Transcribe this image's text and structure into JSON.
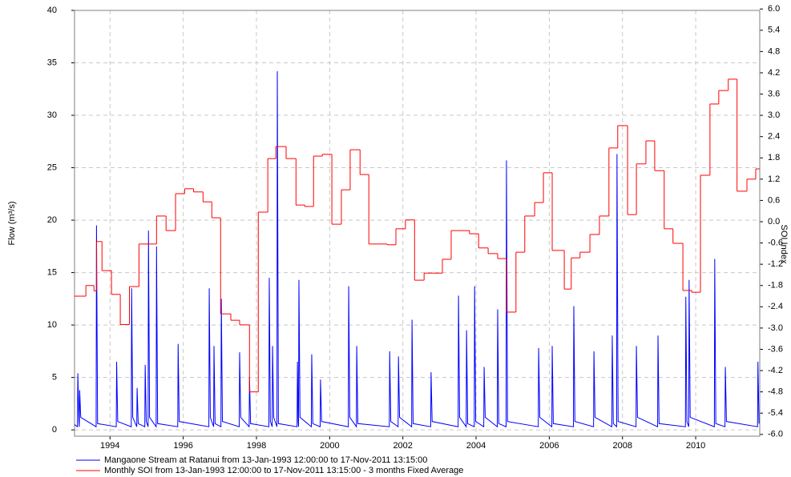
{
  "chart_data": {
    "type": "line",
    "y_label": "Flow (m³/s)",
    "y2_label": "SOI Index",
    "xlim": [
      1993.03,
      2011.75
    ],
    "xticks": [
      1994,
      1996,
      1998,
      2000,
      2002,
      2004,
      2006,
      2008,
      2010
    ],
    "ylim": [
      -0.6,
      40
    ],
    "yticks": [
      0,
      5,
      10,
      15,
      20,
      25,
      30,
      35,
      40
    ],
    "y2lim": [
      -6.05,
      5.96
    ],
    "y2ticks": [
      {
        "value": -6,
        "label": "-6.0"
      },
      {
        "value": -5.4,
        "label": "-5.4"
      },
      {
        "value": -4.8,
        "label": "-4.8"
      },
      {
        "value": -4.2,
        "label": "-4.2"
      },
      {
        "value": -3.6,
        "label": "-3.6"
      },
      {
        "value": -3,
        "label": "-3.0"
      },
      {
        "value": -2.4,
        "label": "-2.4"
      },
      {
        "value": -1.8,
        "label": "-1.8"
      },
      {
        "value": -1.2,
        "label": "-1.2"
      },
      {
        "value": -0.6,
        "label": "-0.6"
      },
      {
        "value": 0,
        "label": "0.0"
      },
      {
        "value": 0.6,
        "label": "0.6"
      },
      {
        "value": 1.2,
        "label": "1.2"
      },
      {
        "value": 1.8,
        "label": "1.8"
      },
      {
        "value": 2.4,
        "label": "2.4"
      },
      {
        "value": 3,
        "label": "3.0"
      },
      {
        "value": 3.6,
        "label": "3.6"
      },
      {
        "value": 4.2,
        "label": "4.2"
      },
      {
        "value": 4.8,
        "label": "4.8"
      },
      {
        "value": 5.4,
        "label": "5.4"
      },
      {
        "value": 6,
        "label": "6.0"
      }
    ],
    "grid": true,
    "legend": "bottom",
    "series": [
      {
        "name": "Mangaone Stream at Ratanui from 13-Jan-1993 12:00:00 to 17-Nov-2011 13:15:00",
        "color": "#0000ff",
        "axis": "y",
        "x": [
          1993.03,
          1993.11,
          1993.12,
          1993.15,
          1993.16,
          1993.17,
          1993.2,
          1993.62,
          1993.63,
          1993.66,
          1994.17,
          1994.18,
          1994.21,
          1994.58,
          1994.59,
          1994.62,
          1994.73,
          1994.74,
          1994.77,
          1994.95,
          1994.96,
          1994.99,
          1995.04,
          1995.05,
          1995.08,
          1995.26,
          1995.27,
          1995.3,
          1995.85,
          1995.86,
          1995.89,
          1996.7,
          1996.71,
          1996.74,
          1996.83,
          1996.84,
          1996.87,
          1997.03,
          1997.04,
          1997.07,
          1997.53,
          1997.54,
          1997.57,
          1997.8,
          1997.81,
          1997.84,
          1998.34,
          1998.35,
          1998.38,
          1998.43,
          1998.44,
          1998.47,
          1998.56,
          1998.57,
          1998.6,
          1999.11,
          1999.12,
          1999.14,
          1999.15,
          1999.16,
          1999.19,
          1999.5,
          1999.51,
          1999.54,
          1999.74,
          1999.75,
          1999.78,
          2000.51,
          2000.52,
          2000.55,
          2000.73,
          2000.74,
          2000.77,
          2001.63,
          2001.64,
          2001.67,
          2001.87,
          2001.88,
          2001.91,
          2002.24,
          2002.25,
          2002.28,
          2002.76,
          2002.77,
          2002.8,
          2003.51,
          2003.52,
          2003.55,
          2003.73,
          2003.74,
          2003.77,
          2003.95,
          2003.96,
          2003.99,
          2004.21,
          2004.22,
          2004.25,
          2004.58,
          2004.59,
          2004.62,
          2004.82,
          2004.83,
          2004.86,
          2005.7,
          2005.71,
          2005.74,
          2006.07,
          2006.08,
          2006.11,
          2006.66,
          2006.67,
          2006.7,
          2007.21,
          2007.22,
          2007.25,
          2007.71,
          2007.72,
          2007.75,
          2007.84,
          2007.85,
          2007.88,
          2008.37,
          2008.38,
          2008.41,
          2008.96,
          2008.97,
          2009.0,
          2009.72,
          2009.73,
          2009.76,
          2009.81,
          2009.82,
          2009.85,
          2010.51,
          2010.52,
          2010.55,
          2010.8,
          2010.81,
          2010.84,
          2011.69,
          2011.7,
          2011.73
        ],
        "values": [
          0.5,
          0.3,
          5.4,
          0.8,
          0.3,
          3.8,
          1.2,
          0.3,
          19.5,
          0.6,
          0.3,
          6.5,
          0.8,
          0.3,
          13.5,
          1.2,
          0.3,
          4,
          0.6,
          0.3,
          6.2,
          0.8,
          0.3,
          19,
          1.2,
          0.3,
          17.5,
          0.6,
          0.3,
          8.2,
          0.8,
          0.3,
          13.5,
          1.2,
          0.3,
          8,
          0.6,
          0.3,
          12.5,
          0.8,
          0.3,
          7.4,
          1.2,
          0.3,
          5,
          0.6,
          0.3,
          14.5,
          0.8,
          0.3,
          8,
          1.2,
          0.3,
          34.2,
          0.6,
          0.3,
          6.5,
          0.8,
          0.3,
          14.3,
          1.2,
          0.3,
          7.2,
          0.6,
          0.3,
          4.8,
          0.8,
          0.3,
          13.7,
          1.2,
          0.3,
          8,
          0.6,
          0.3,
          7.5,
          0.8,
          0.3,
          7,
          1.2,
          0.3,
          10.5,
          0.6,
          0.3,
          5.5,
          0.8,
          0.3,
          12.8,
          1.2,
          0.3,
          9.5,
          0.6,
          0.3,
          13.7,
          0.8,
          0.3,
          6,
          1.2,
          0.3,
          11.5,
          0.6,
          0.3,
          25.7,
          0.8,
          0.3,
          7.8,
          1.2,
          0.3,
          8,
          0.6,
          0.3,
          11.8,
          0.8,
          0.3,
          7.5,
          1.2,
          0.3,
          9,
          0.6,
          0.3,
          26.3,
          0.8,
          0.3,
          8,
          1.2,
          0.3,
          9,
          0.6,
          0.3,
          12.7,
          0.8,
          0.3,
          14.3,
          1.2,
          0.3,
          16.3,
          0.6,
          0.3,
          6,
          0.8,
          0.3,
          6.5,
          0.6
        ]
      },
      {
        "name": "Monthly SOI from 13-Jan-1993 12:00:00 to 17-Nov-2011 13:15:00 - 3 months Fixed Average",
        "color": "#ff0000",
        "axis": "y2",
        "drawstyle": "steps-post",
        "x": [
          1993.02,
          1993.34,
          1993.56,
          1993.63,
          1993.78,
          1994.04,
          1994.28,
          1994.53,
          1994.79,
          1995.27,
          1995.53,
          1995.79,
          1996.04,
          1996.28,
          1996.54,
          1996.78,
          1997.02,
          1997.3,
          1997.54,
          1997.81,
          1998.05,
          1998.31,
          1998.53,
          1998.81,
          1999.08,
          1999.32,
          1999.56,
          1999.8,
          2000.06,
          2000.32,
          2000.56,
          2000.83,
          2001.07,
          2001.57,
          2001.81,
          2002.07,
          2002.32,
          2002.58,
          2003.08,
          2003.32,
          2003.82,
          2004.07,
          2004.33,
          2004.59,
          2004.83,
          2005.09,
          2005.33,
          2005.6,
          2005.84,
          2006.08,
          2006.41,
          2006.6,
          2006.84,
          2007.11,
          2007.37,
          2007.63,
          2007.87,
          2008.14,
          2008.38,
          2008.64,
          2008.88,
          2009.14,
          2009.38,
          2009.65,
          2009.89,
          2010.13,
          2010.39,
          2010.63,
          2010.89,
          2011.13,
          2011.4,
          2011.64
        ],
        "values": [
          -2.1,
          -1.8,
          -1.95,
          -0.56,
          -1.38,
          -2.05,
          -2.9,
          -1.83,
          -0.63,
          0.16,
          -0.25,
          0.79,
          0.93,
          0.84,
          0.56,
          0.11,
          -2.6,
          -2.78,
          -2.91,
          -4.8,
          0.27,
          1.78,
          2.12,
          1.78,
          0.47,
          0.43,
          1.85,
          1.9,
          -0.07,
          0.9,
          2.03,
          1.33,
          -0.63,
          -0.65,
          -0.2,
          0.05,
          -1.65,
          -1.45,
          -1.06,
          -0.25,
          -0.34,
          -0.74,
          -0.9,
          -1.04,
          -2.55,
          -0.86,
          0.16,
          0.54,
          1.38,
          -0.81,
          -1.9,
          -1.02,
          -0.86,
          -0.36,
          0.16,
          2.08,
          2.71,
          0.2,
          1.63,
          2.28,
          1.44,
          -0.2,
          -0.61,
          -1.94,
          -1.99,
          1.31,
          3.32,
          3.7,
          4.02,
          0.86,
          1.2,
          1.49
        ]
      }
    ]
  }
}
